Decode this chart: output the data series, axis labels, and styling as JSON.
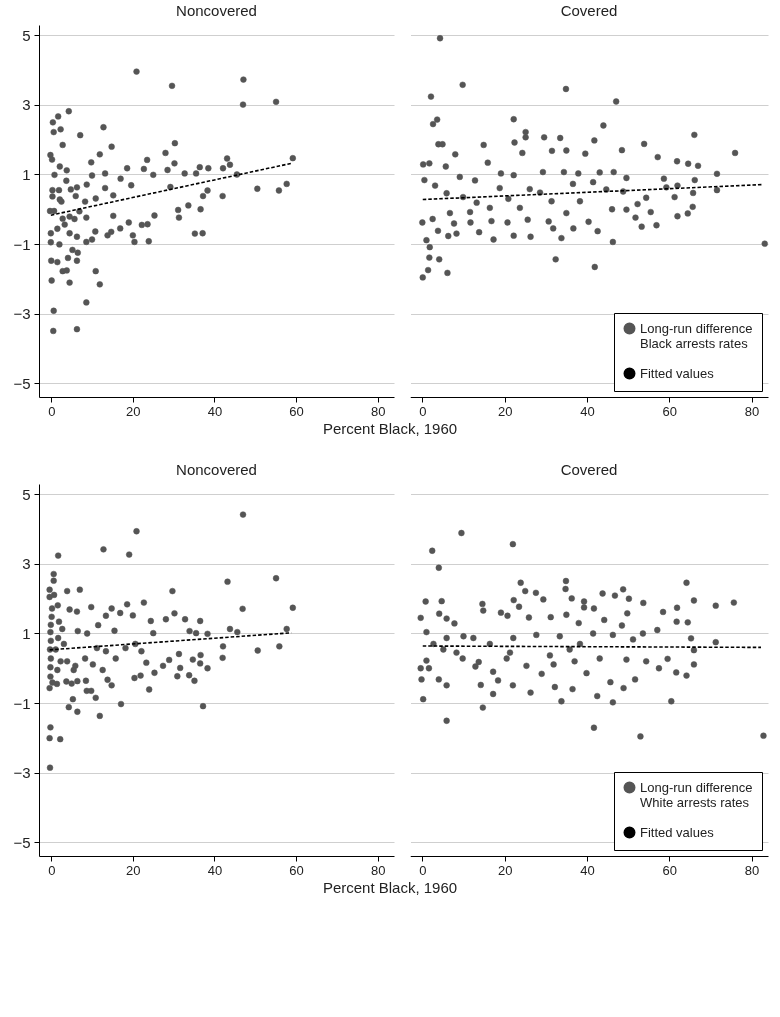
{
  "chart_data": [
    {
      "type": "scatter",
      "title": "Noncovered",
      "xlabel": "Percent Black, 1960",
      "xlim": [
        -3,
        84
      ],
      "xticks": [
        0,
        20,
        40,
        60,
        80
      ],
      "ylim": [
        -5.4,
        5.3
      ],
      "yticks": [
        {
          "value": -5,
          "label": "−5"
        },
        {
          "value": -3,
          "label": "−3"
        },
        {
          "value": -1,
          "label": "−1"
        },
        1,
        3,
        5
      ],
      "grid": "y",
      "legend": false,
      "series": [
        {
          "color": "#555555",
          "marker": "circle",
          "x": [
            20.9,
            29.6,
            47.1,
            47.0,
            55.1,
            4.3,
            1.7,
            0.4,
            0.6,
            2.3,
            2.8,
            7.1,
            12.8,
            14.8,
            11.9,
            9.8,
            -0.2,
            0.2,
            2.1,
            3.8,
            28.0,
            30.3,
            30.2,
            23.5,
            43.1,
            43.8,
            59.2,
            42.1,
            36.4,
            38.5,
            45.5,
            50.5,
            55.8,
            57.7,
            42.0,
            38.3,
            37.2,
            36.6,
            35.2,
            37.1,
            31.3,
            33.6,
            31.1,
            29.2,
            28.5,
            32.7,
            35.5,
            25.0,
            22.7,
            18.6,
            25.3,
            23.9,
            20.4,
            23.6,
            22.2,
            20.0,
            16.9,
            19.0,
            14.7,
            13.8,
            15.2,
            17.0,
            19.6,
            13.2,
            15.2,
            10.9,
            8.3,
            8.7,
            13.2,
            10.0,
            10.8,
            10.0,
            8.6,
            6.3,
            4.5,
            2.0,
            -0.1,
            -0.1,
            1.5,
            6.5,
            5.2,
            4.1,
            6.3,
            0.0,
            1.5,
            2.8,
            3.8,
            10.9,
            11.9,
            4.5,
            0.1,
            8.6,
            0.6,
            0.5,
            6.3,
            -0.3,
            0.7,
            2.8,
            4.5,
            3.3,
            0.3,
            0.3,
            1.9,
            0.8,
            3.7,
            4.8,
            6.3,
            6.0,
            2.5,
            2.1,
            6.9,
            5.7,
            8.6
          ],
          "values": [
            3.96,
            3.55,
            3.73,
            3.01,
            3.09,
            2.82,
            2.67,
            2.5,
            2.22,
            2.3,
            1.85,
            2.13,
            2.36,
            1.8,
            1.58,
            1.35,
            1.56,
            1.43,
            1.23,
            1.12,
            1.62,
            1.9,
            1.32,
            1.42,
            1.46,
            1.28,
            1.47,
            1.18,
            1.21,
            1.18,
            1.0,
            0.59,
            0.54,
            0.73,
            0.38,
            0.54,
            0.38,
            0.0,
            -0.7,
            -0.69,
            -0.24,
            0.11,
            -0.02,
            0.64,
            1.13,
            1.03,
            1.03,
            0.99,
            1.16,
            1.18,
            -0.18,
            -0.92,
            -0.94,
            -0.43,
            -0.45,
            -0.75,
            -0.55,
            -0.38,
            -0.65,
            -0.75,
            -0.19,
            0.88,
            0.69,
            0.61,
            0.4,
            0.31,
            0.22,
            0.71,
            1.03,
            0.97,
            -0.64,
            -0.87,
            -0.94,
            -0.79,
            -0.69,
            -1.01,
            -0.95,
            -0.69,
            -0.56,
            -1.25,
            -1.17,
            -1.4,
            -1.48,
            -1.48,
            -1.52,
            -1.78,
            -1.76,
            -1.78,
            -2.16,
            -2.11,
            -2.05,
            -2.68,
            -2.92,
            -3.5,
            -3.45,
            -0.05,
            -0.05,
            -0.27,
            -0.21,
            -0.44,
            0.55,
            0.37,
            0.55,
            0.99,
            0.82,
            0.57,
            0.63,
            0.38,
            0.22,
            0.28,
            -0.06,
            -0.28,
            -0.24
          ]
        },
        {
          "type": "line",
          "color": "#000000",
          "line_style": "dashed",
          "x": [
            -0.1,
            59.2
          ],
          "values": [
            -0.17,
            1.33
          ]
        }
      ]
    },
    {
      "type": "scatter",
      "title": "Covered",
      "xlim": [
        -3,
        84
      ],
      "xticks": [
        0,
        20,
        40,
        60,
        80
      ],
      "ylim": [
        -5.4,
        5.3
      ],
      "yticks": [
        -5,
        -3,
        -1,
        1,
        3,
        5
      ],
      "grid": "y",
      "tick_labels": "x",
      "legend": "bottom right",
      "series": [
        {
          "name": "Long-run difference Black arrests rates",
          "color": "#555555",
          "marker": "circle",
          "x": [
            4.3,
            9.8,
            2.1,
            34.9,
            47.1,
            3.6,
            2.6,
            3.9,
            4.9,
            22.2,
            25.1,
            25.1,
            29.6,
            33.5,
            41.8,
            44.0,
            53.9,
            66.1,
            76.0,
            8.0,
            14.9,
            15.9,
            0.2,
            1.7,
            5.7,
            22.4,
            24.3,
            31.5,
            35.0,
            39.6,
            48.5,
            57.2,
            61.9,
            64.6,
            67.0,
            71.6,
            71.6,
            66.2,
            65.8,
            65.7,
            64.5,
            62.0,
            61.3,
            62.0,
            58.7,
            56.9,
            53.3,
            55.5,
            46.3,
            41.9,
            32.4,
            42.6,
            36.7,
            33.8,
            31.8,
            26.3,
            22.2,
            17.3,
            13.8,
            8.3,
            6.3,
            3.8,
            1.0,
            1.8,
            1.7,
            4.1,
            1.4,
            0.1,
            6.1,
            83.2,
            0.0,
            2.5,
            7.7,
            11.7,
            16.8,
            20.7,
            25.6,
            30.7,
            40.4,
            46.1,
            49.6,
            51.8,
            52.3,
            49.6,
            46.5,
            43.1,
            37.9,
            34.4,
            29.3,
            22.2,
            19.1,
            12.8,
            9.1,
            0.5,
            3.1,
            5.9,
            9.9,
            13.2,
            16.4,
            18.8,
            20.9,
            26.1,
            28.6,
            31.4,
            36.6,
            38.3,
            41.5,
            44.7,
            48.8,
            59.3,
            54.4,
            11.6,
            23.7,
            6.7,
            35.0
          ],
          "values": [
            4.92,
            3.58,
            3.24,
            3.46,
            3.1,
            2.58,
            2.45,
            1.87,
            1.87,
            2.59,
            2.22,
            2.07,
            2.07,
            2.05,
            1.98,
            2.41,
            1.88,
            2.14,
            1.62,
            1.58,
            1.85,
            1.34,
            1.29,
            1.32,
            1.23,
            1.92,
            1.62,
            1.68,
            1.69,
            1.6,
            1.7,
            1.5,
            1.38,
            1.31,
            1.25,
            1.02,
            0.55,
            0.84,
            0.47,
            0.07,
            -0.12,
            -0.2,
            0.35,
            0.68,
            0.88,
            -0.46,
            -0.5,
            -0.08,
            -0.94,
            -1.66,
            -1.44,
            -0.63,
            -0.55,
            -0.83,
            -0.55,
            -0.79,
            -0.76,
            -0.87,
            -0.66,
            -0.7,
            -0.77,
            -0.62,
            -0.89,
            -1.09,
            -1.39,
            -1.44,
            -1.75,
            -1.96,
            -1.83,
            -0.99,
            -0.38,
            -0.28,
            -0.41,
            -0.38,
            -0.34,
            -0.38,
            -0.3,
            -0.35,
            -0.36,
            0.0,
            -0.01,
            -0.24,
            0.15,
            0.9,
            1.07,
            1.06,
            1.03,
            1.07,
            1.07,
            0.98,
            1.03,
            0.83,
            0.93,
            0.84,
            0.68,
            0.46,
            0.35,
            0.19,
            0.04,
            0.61,
            0.3,
            0.58,
            0.48,
            0.23,
            0.73,
            0.23,
            0.78,
            0.57,
            0.51,
            0.63,
            0.33,
            -0.08,
            0.04,
            -0.11,
            -0.11
          ]
        },
        {
          "type": "line",
          "name": "Fitted values",
          "color": "#000000",
          "line_style": "dashed",
          "x": [
            0.1,
            82.8
          ],
          "values": [
            0.28,
            0.71
          ]
        }
      ]
    },
    {
      "type": "scatter",
      "title": "Noncovered",
      "xlabel": "Percent Black, 1960",
      "xlim": [
        -3,
        84
      ],
      "xticks": [
        0,
        20,
        40,
        60,
        80
      ],
      "ylim": [
        -5.4,
        5.3
      ],
      "yticks": [
        {
          "value": -5,
          "label": "−5"
        },
        {
          "value": -3,
          "label": "−3"
        },
        {
          "value": -1,
          "label": "−1"
        },
        1,
        3,
        5
      ],
      "grid": "y",
      "legend": false,
      "series": [
        {
          "color": "#555555",
          "marker": "circle",
          "x": [
            47.0,
            20.9,
            12.8,
            19.1,
            1.7,
            0.6,
            0.6,
            43.2,
            55.1,
            -0.4,
            -0.4,
            0.7,
            3.9,
            7.0,
            29.7,
            22.7,
            18.6,
            9.8,
            1.6,
            0.2,
            4.5,
            6.3,
            46.9,
            59.2,
            30.2,
            14.8,
            13.4,
            16.9,
            20.0,
            11.5,
            24.4,
            28.1,
            32.8,
            36.5,
            57.7,
            43.8,
            45.6,
            38.3,
            35.5,
            33.9,
            25.0,
            15.5,
            8.8,
            6.5,
            42.1,
            50.6,
            55.9,
            42.0,
            36.6,
            38.3,
            36.5,
            34.7,
            31.3,
            28.9,
            31.6,
            30.9,
            33.8,
            35.1,
            37.2,
            24.0,
            21.9,
            20.4,
            25.3,
            27.4,
            17.1,
            13.8,
            14.8,
            11.9,
            10.9,
            8.7,
            9.8,
            8.5,
            6.4,
            6.4,
            4.3,
            5.3,
            5.0,
            3.7,
            1.4,
            0.3,
            -0.4,
            -0.2,
            -0.4,
            2.2,
            -0.3,
            -0.2,
            -0.2,
            -0.1,
            -0.3,
            -0.1,
            -0.2,
            -0.1,
            0.1,
            1.9,
            2.7,
            1.7,
            3.1,
            1.1,
            2.3,
            3.9,
            1.5,
            5.9,
            8.3,
            11.2,
            13.4,
            18.2,
            15.8,
            20.6,
            22.1,
            5.5,
            10.2,
            12.6,
            23.3
          ],
          "values": [
            4.42,
            3.94,
            3.42,
            3.27,
            3.24,
            2.71,
            2.52,
            2.49,
            2.59,
            2.26,
            2.05,
            2.11,
            2.22,
            2.26,
            2.22,
            1.89,
            1.84,
            1.76,
            1.81,
            1.72,
            1.69,
            1.63,
            1.71,
            1.74,
            1.58,
            1.72,
            1.51,
            1.59,
            1.52,
            1.24,
            1.36,
            1.41,
            1.41,
            1.36,
            1.13,
            1.13,
            1.04,
            0.99,
            1.01,
            1.07,
            1.01,
            1.08,
            1.0,
            1.07,
            0.63,
            0.51,
            0.63,
            0.3,
            0.38,
            0.0,
            0.14,
            0.25,
            0.41,
            0.24,
            0.01,
            -0.23,
            -0.2,
            -0.36,
            -1.09,
            -0.61,
            -0.21,
            -0.28,
            -0.13,
            0.07,
            -1.03,
            -0.33,
            -0.49,
            -1.37,
            -0.85,
            -0.65,
            -0.65,
            -0.36,
            -0.37,
            -1.25,
            -1.12,
            -0.89,
            -0.44,
            -0.38,
            -0.45,
            -0.41,
            -0.57,
            -1.7,
            -2.01,
            -2.04,
            -2.86,
            -0.24,
            0.03,
            0.28,
            0.54,
            0.79,
            1.04,
            1.25,
            1.48,
            1.34,
            1.13,
            0.87,
            0.7,
            0.54,
            0.2,
            0.2,
            -0.05,
            0.07,
            0.28,
            0.58,
            0.49,
            0.58,
            0.28,
            0.7,
            0.49,
            -0.05,
            0.11,
            -0.05,
            0.16
          ]
        },
        {
          "type": "line",
          "color": "#000000",
          "line_style": "dashed",
          "x": [
            -0.4,
            58.8
          ],
          "values": [
            0.53,
            1.02
          ]
        }
      ]
    },
    {
      "type": "scatter",
      "title": "Covered",
      "xlim": [
        -3,
        84
      ],
      "xticks": [
        0,
        20,
        40,
        60,
        80
      ],
      "ylim": [
        -5.4,
        5.3
      ],
      "yticks": [
        -5,
        -3,
        -1,
        1,
        3,
        5
      ],
      "grid": "y",
      "tick_labels": "x",
      "legend": "bottom right",
      "series": [
        {
          "name": "Long-run difference White arrests rates",
          "color": "#555555",
          "marker": "circle",
          "x": [
            9.5,
            22.0,
            2.4,
            4.0,
            23.9,
            34.9,
            64.2,
            34.8,
            25.0,
            27.6,
            29.4,
            43.8,
            46.8,
            48.8,
            50.2,
            53.7,
            66.0,
            71.3,
            75.7,
            0.8,
            4.7,
            14.6,
            14.8,
            22.2,
            23.5,
            36.3,
            39.3,
            39.3,
            41.7,
            61.9,
            58.5,
            49.8,
            -0.4,
            4.1,
            5.9,
            7.8,
            19.1,
            20.7,
            25.9,
            31.2,
            35.0,
            38.0,
            44.2,
            48.5,
            61.8,
            64.5,
            57.1,
            53.6,
            71.3,
            65.3,
            66.0,
            66.0,
            64.2,
            61.7,
            60.5,
            53.0,
            82.9,
            41.7,
            46.3,
            42.5,
            33.8,
            26.3,
            17.2,
            14.7,
            5.9,
            0.2,
            -0.2,
            4.0,
            5.9,
            14.2,
            18.4,
            22.0,
            32.2,
            36.5,
            45.7,
            48.9,
            51.7,
            57.5,
            59.6,
            54.4,
            49.6,
            43.1,
            37.0,
            31.9,
            25.3,
            20.5,
            13.7,
            9.8,
            1.0,
            -0.4,
            1.6,
            12.9,
            17.2,
            29.0,
            39.9,
            2.7,
            5.9,
            10.0,
            12.4,
            16.4,
            22.1,
            27.7,
            33.4,
            38.3,
            41.5,
            46.3,
            51.2,
            1.0,
            5.1,
            8.3,
            21.3,
            31.0,
            35.8
          ],
          "values": [
            3.89,
            3.57,
            3.38,
            2.89,
            2.46,
            2.51,
            2.46,
            2.28,
            2.22,
            2.17,
            1.98,
            2.15,
            2.09,
            2.27,
            2.0,
            1.88,
            1.95,
            1.8,
            1.89,
            1.92,
            1.93,
            1.85,
            1.66,
            1.96,
            1.77,
            2.01,
            1.92,
            1.75,
            1.72,
            1.74,
            1.62,
            1.58,
            1.45,
            1.57,
            1.43,
            1.29,
            1.6,
            1.51,
            1.46,
            1.47,
            1.54,
            1.3,
            1.39,
            1.23,
            1.34,
            1.32,
            1.1,
            1.0,
            0.75,
            0.86,
            0.52,
            0.11,
            -0.21,
            -0.12,
            -0.95,
            -1.96,
            -1.94,
            -1.71,
            -0.98,
            -0.8,
            -0.95,
            -0.7,
            -0.74,
            -1.13,
            -1.51,
            -0.89,
            -0.32,
            -0.32,
            -0.49,
            -0.48,
            -0.35,
            -0.49,
            -0.54,
            -0.6,
            -0.4,
            -0.57,
            -0.32,
            0.0,
            0.27,
            0.2,
            0.25,
            0.28,
            0.2,
            0.11,
            0.07,
            0.28,
            0.18,
            0.28,
            0.22,
            0.0,
            0.0,
            0.05,
            -0.1,
            -0.16,
            -0.14,
            0.7,
            0.87,
            0.92,
            0.87,
            0.7,
            0.87,
            0.96,
            0.92,
            0.7,
            1.0,
            0.96,
            0.83,
            1.04,
            0.54,
            0.45,
            0.45,
            0.37,
            0.54
          ]
        },
        {
          "type": "line",
          "name": "Fitted values",
          "color": "#000000",
          "line_style": "dashed",
          "x": [
            0.1,
            82.3
          ],
          "values": [
            0.64,
            0.6
          ]
        }
      ]
    }
  ]
}
